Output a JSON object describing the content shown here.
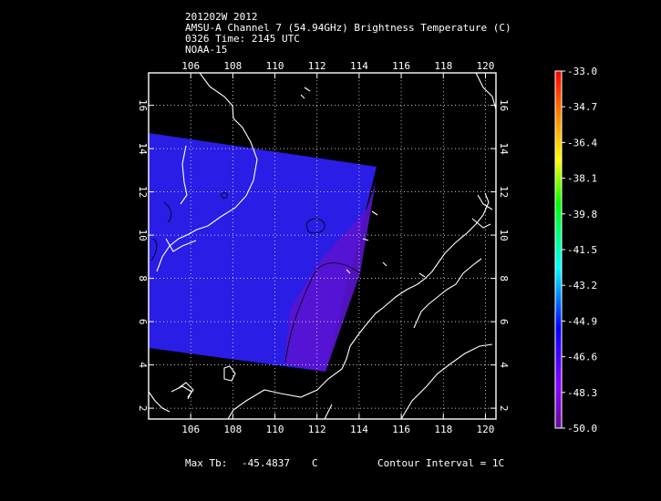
{
  "header": {
    "line1": "201202W 2012",
    "line2": "AMSU-A Channel 7 (54.94GHz) Brightness Temperature (C)",
    "line3": "0326 Time: 2145 UTC",
    "line4": "NOAA-15"
  },
  "map": {
    "lon_range": [
      104,
      120.5
    ],
    "lat_range": [
      1.5,
      17.5
    ],
    "lon_ticks": [
      "106",
      "108",
      "110",
      "112",
      "114",
      "116",
      "118",
      "120"
    ],
    "lat_ticks": [
      "2",
      "4",
      "6",
      "8",
      "10",
      "12",
      "14",
      "16"
    ],
    "grid": "dotted",
    "coastline_color": "#ffffff",
    "swath_color": "#2a1de6",
    "contour_color": "#000000"
  },
  "colorbar": {
    "labels": [
      "-33.0",
      "-34.7",
      "-36.4",
      "-38.1",
      "-39.8",
      "-41.5",
      "-43.2",
      "-44.9",
      "-46.6",
      "-48.3",
      "-50.0"
    ],
    "colors": [
      "#ff0000",
      "#ff7f00",
      "#ffff00",
      "#00ff00",
      "#00ffff",
      "#0000ff",
      "#8b00ff",
      "#ffffff"
    ]
  },
  "footer": {
    "max_label": "Max Tb:",
    "max_value": "-45.4837",
    "max_unit": "C",
    "contour": "Contour Interval = 1C"
  }
}
